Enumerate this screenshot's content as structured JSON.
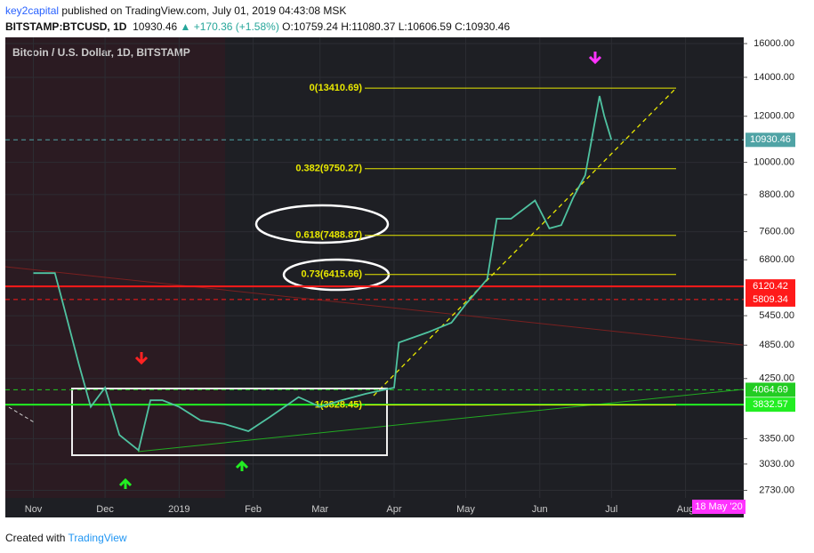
{
  "header": {
    "publisher": "key2capital",
    "published": "published on TradingView.com, July 01, 2019 04:43:08 MSK",
    "symbol": "BITSTAMP:BTCUSD, 1D",
    "last": "10930.46",
    "change": "▲ +170.36 (+1.58%)",
    "ohlc": "O:10759.24 H:11080.37 L:10606.59 C:10930.46"
  },
  "chart_data": {
    "type": "line",
    "title": "Bitcoin / U.S. Dollar, 1D, BITSTAMP",
    "color": "#4fc3a1",
    "x": [
      "2018-11-01",
      "2018-11-10",
      "2018-11-14",
      "2018-11-20",
      "2018-11-25",
      "2018-12-01",
      "2018-12-07",
      "2018-12-15",
      "2018-12-20",
      "2018-12-25",
      "2019-01-01",
      "2019-01-10",
      "2019-01-20",
      "2019-01-30",
      "2019-02-08",
      "2019-02-20",
      "2019-03-01",
      "2019-03-10",
      "2019-03-20",
      "2019-04-01",
      "2019-04-03",
      "2019-04-15",
      "2019-04-25",
      "2019-05-01",
      "2019-05-10",
      "2019-05-14",
      "2019-05-20",
      "2019-05-30",
      "2019-06-05",
      "2019-06-10",
      "2019-06-15",
      "2019-06-20",
      "2019-06-26",
      "2019-06-28",
      "2019-07-01"
    ],
    "values": [
      6450,
      6450,
      5600,
      4500,
      3800,
      4100,
      3400,
      3200,
      3900,
      3900,
      3800,
      3600,
      3550,
      3450,
      3650,
      3950,
      3800,
      3900,
      4000,
      4100,
      4900,
      5100,
      5300,
      5700,
      6300,
      8000,
      8000,
      8600,
      7700,
      7800,
      8700,
      9500,
      13000,
      12000,
      10930.46
    ],
    "log_scale": true,
    "ylim": [
      2650,
      16400
    ],
    "xlim": [
      "2018-10-21",
      "2019-08-25"
    ],
    "yticks": [
      {
        "value": 2730,
        "label": "2730.00"
      },
      {
        "value": 3030,
        "label": "3030.00"
      },
      {
        "value": 3350,
        "label": "3350.00"
      },
      {
        "value": 4250,
        "label": "4250.00"
      },
      {
        "value": 4850,
        "label": "4850.00"
      },
      {
        "value": 5450,
        "label": "5450.00"
      },
      {
        "value": 6800,
        "label": "6800.00"
      },
      {
        "value": 7600,
        "label": "7600.00"
      },
      {
        "value": 8800,
        "label": "8800.00"
      },
      {
        "value": 10000,
        "label": "10000.00"
      },
      {
        "value": 12000,
        "label": "12000.00"
      },
      {
        "value": 14000,
        "label": "14000.00"
      },
      {
        "value": 16000,
        "label": "16000.00"
      }
    ],
    "xticks": [
      {
        "value": "2018-11-01",
        "label": "Nov"
      },
      {
        "value": "2018-12-01",
        "label": "Dec"
      },
      {
        "value": "2019-01-01",
        "label": "2019"
      },
      {
        "value": "2019-02-01",
        "label": "Feb"
      },
      {
        "value": "2019-03-01",
        "label": "Mar"
      },
      {
        "value": "2019-04-01",
        "label": "Apr"
      },
      {
        "value": "2019-05-01",
        "label": "May"
      },
      {
        "value": "2019-06-01",
        "label": "Jun"
      },
      {
        "value": "2019-07-01",
        "label": "Jul"
      },
      {
        "value": "2019-08-01",
        "label": "Aug"
      }
    ],
    "fib_color": "#e8e800",
    "fib_levels": [
      {
        "value": 13410.69,
        "label": "0(13410.69)"
      },
      {
        "value": 9750.27,
        "label": "0.382(9750.27)"
      },
      {
        "value": 7488.87,
        "label": "0.618(7488.87)"
      },
      {
        "value": 6415.66,
        "label": "0.73(6415.66)"
      },
      {
        "value": 3828.45,
        "label": "1(3828.45)"
      }
    ],
    "price_lines": [
      {
        "value": 10930.46,
        "color": "#4fa3a5",
        "dash": true
      },
      {
        "value": 6120.42,
        "color": "#ff1a1a",
        "dash": false
      },
      {
        "value": 5809.34,
        "color": "#ff1a1a",
        "dash": true
      },
      {
        "value": 4064.69,
        "color": "#22cc22",
        "dash": true
      },
      {
        "value": 3832.57,
        "color": "#22ee22",
        "dash": false
      }
    ],
    "date_tag": "18 May '20"
  },
  "footer": {
    "created": "Created with",
    "brand": "TradingView"
  }
}
